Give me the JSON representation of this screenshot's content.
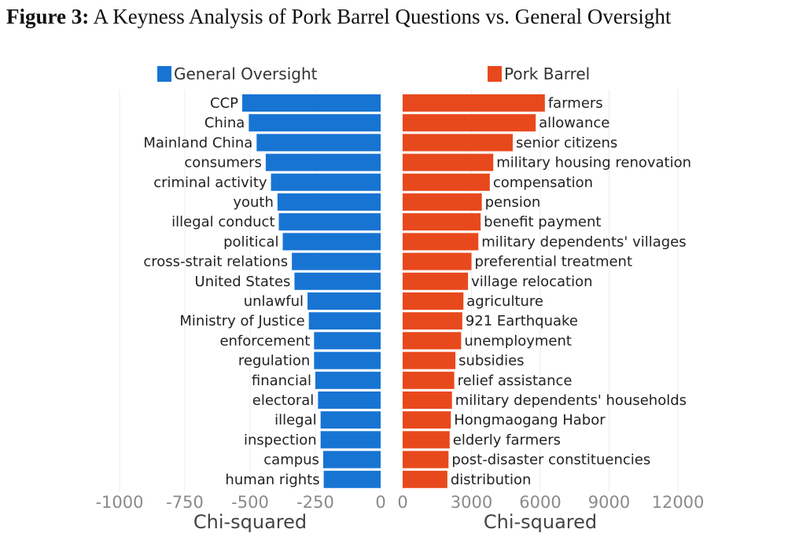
{
  "title": {
    "label": "Figure 3:",
    "text": "A Keyness Analysis of Pork Barrel Questions vs. General Oversight"
  },
  "chart_data": [
    {
      "type": "bar",
      "orientation": "horizontal",
      "series": [
        {
          "name": "General Oversight",
          "color": "#1874d3"
        }
      ],
      "categories": [
        "CCP",
        "China",
        "Mainland China",
        "consumers",
        "criminal activity",
        "youth",
        "illegal conduct",
        "political",
        "cross-strait relations",
        "United States",
        "unlawful",
        "Ministry of Justice",
        "enforcement",
        "regulation",
        "financial",
        "electoral",
        "illegal",
        "inspection",
        "campus",
        "human rights"
      ],
      "values": [
        -530,
        -505,
        -475,
        -440,
        -420,
        -395,
        -390,
        -375,
        -340,
        -330,
        -280,
        -275,
        -255,
        -255,
        -250,
        -240,
        -230,
        -230,
        -220,
        -218
      ],
      "xlabel": "Chi-squared",
      "xlim": [
        -1000,
        0
      ],
      "xticks": [
        -1000,
        -750,
        -500,
        -250,
        0
      ],
      "grid": true
    },
    {
      "type": "bar",
      "orientation": "horizontal",
      "series": [
        {
          "name": "Pork Barrel",
          "color": "#e8491c"
        }
      ],
      "categories": [
        "farmers",
        "allowance",
        "senior citizens",
        "military housing renovation",
        "compensation",
        "pension",
        "benefit payment",
        "military dependents' villages",
        "preferential treatment",
        "village relocation",
        "agriculture",
        "921 Earthquake",
        "unemployment",
        "subsidies",
        "relief assistance",
        "military dependents' households",
        "Hongmaogang Habor",
        "elderly farmers",
        "post-disaster constituencies",
        "distribution"
      ],
      "values": [
        6200,
        5800,
        4800,
        3950,
        3800,
        3450,
        3400,
        3300,
        3000,
        2850,
        2650,
        2600,
        2550,
        2300,
        2250,
        2150,
        2100,
        2050,
        2000,
        1950
      ],
      "xlabel": "Chi-squared",
      "xlim": [
        0,
        12000
      ],
      "xticks": [
        0,
        3000,
        6000,
        9000,
        12000
      ],
      "grid": true
    }
  ]
}
